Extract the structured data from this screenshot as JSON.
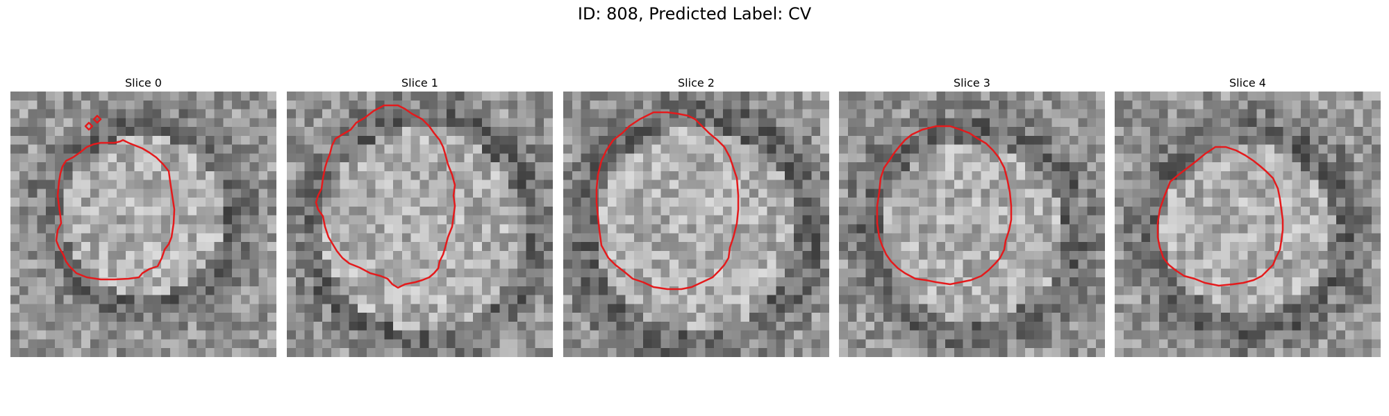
{
  "figure": {
    "title": "ID: 808, Predicted Label: CV"
  },
  "slices": [
    {
      "label": "Slice 0"
    },
    {
      "label": "Slice 1"
    },
    {
      "label": "Slice 2"
    },
    {
      "label": "Slice 3"
    },
    {
      "label": "Slice 4"
    }
  ],
  "colors": {
    "contour": "#e41a1c",
    "colormap": "grayscale"
  }
}
